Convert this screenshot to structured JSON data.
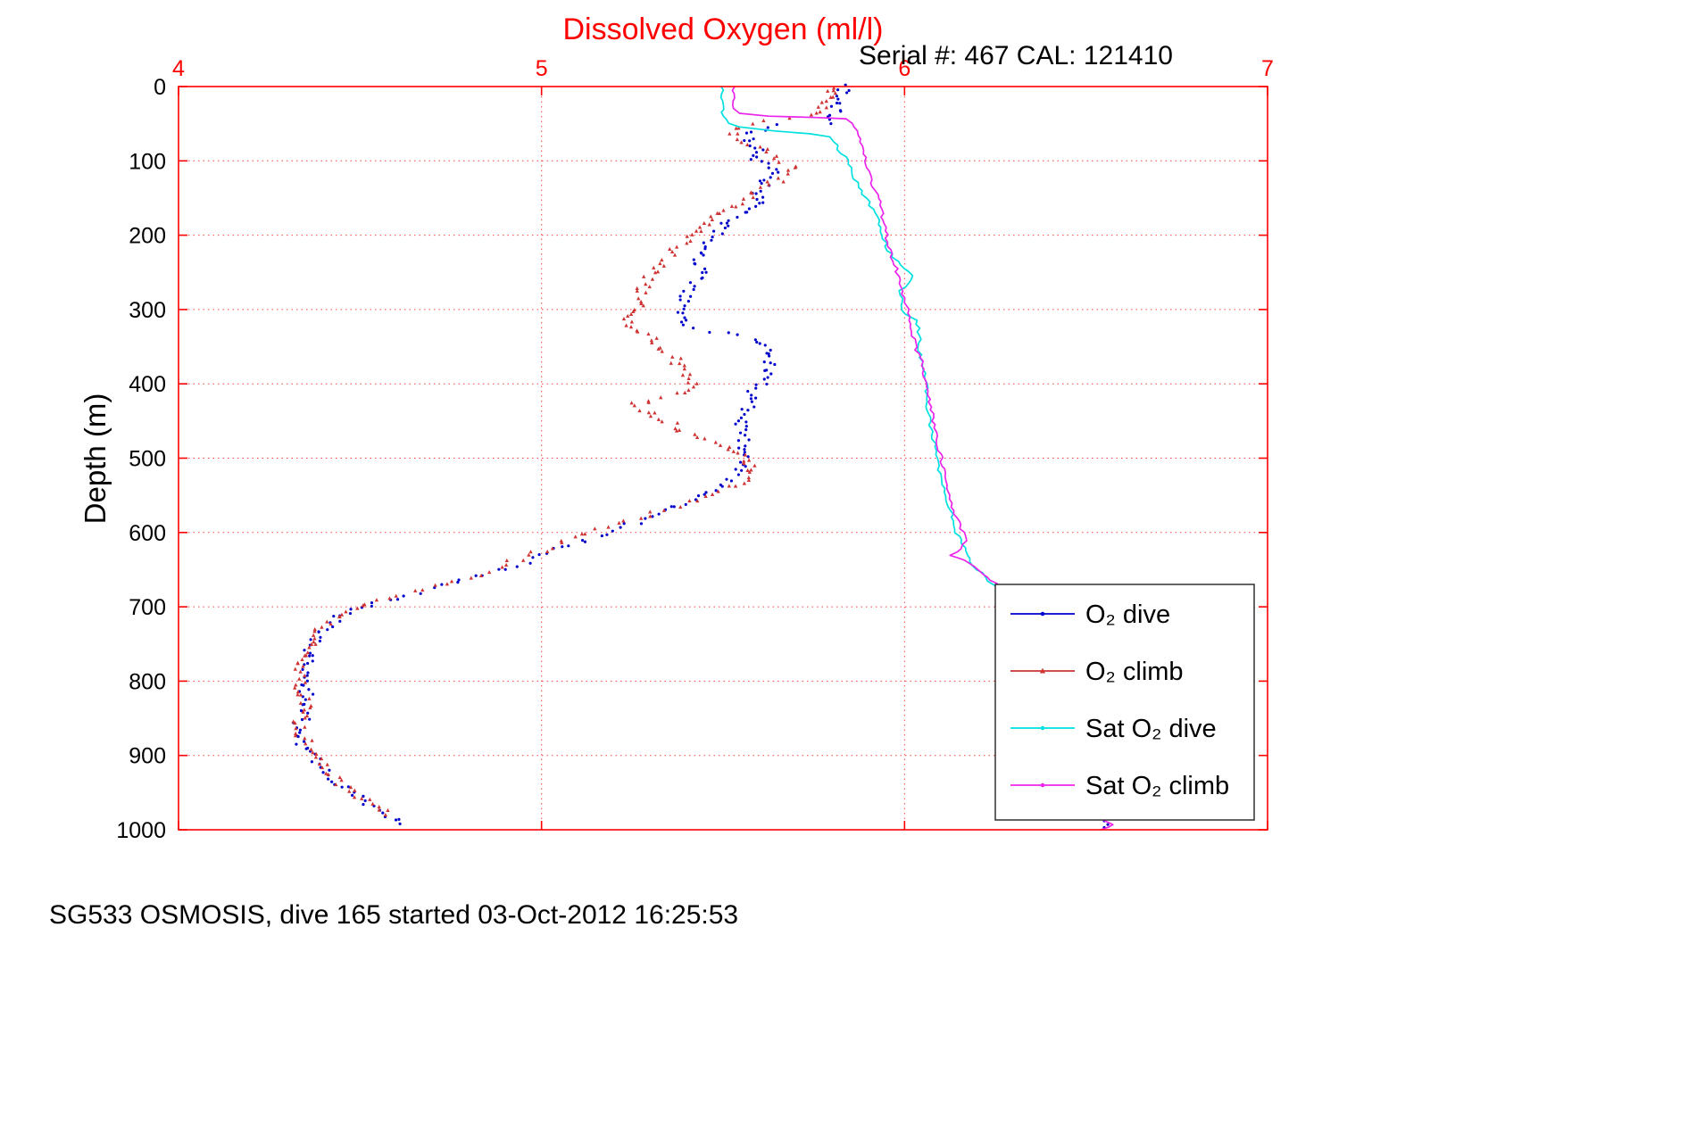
{
  "chart_data": {
    "type": "scatter",
    "title": "Dissolved Oxygen (ml/l)",
    "annotation": "Serial #: 467  CAL: 121410",
    "caption": "SG533 OSMOSIS, dive 165 started 03-Oct-2012 16:25:53",
    "xlabel": "Dissolved Oxygen (ml/l)",
    "ylabel": "Depth (m)",
    "x_axis_location": "top",
    "y_axis_reversed": true,
    "grid": true,
    "axis_color": "#ff0000",
    "xlim": [
      4,
      7
    ],
    "ylim": [
      0,
      1000
    ],
    "x_ticks": [
      4,
      5,
      6,
      7
    ],
    "y_ticks": [
      0,
      100,
      200,
      300,
      400,
      500,
      600,
      700,
      800,
      900,
      1000
    ],
    "legend": {
      "position": "inside-bottom-right",
      "border_color": "#222222",
      "background": "#ffffff"
    },
    "series": [
      {
        "name": "o2-dive",
        "label": "O₂ dive",
        "kind": "scatter",
        "marker": "dot",
        "color": "#0000cd",
        "profile": [
          [
            0,
            5.83
          ],
          [
            10,
            5.83
          ],
          [
            20,
            5.82
          ],
          [
            30,
            5.81
          ],
          [
            40,
            5.8
          ],
          [
            48,
            5.78
          ],
          [
            52,
            5.66
          ],
          [
            58,
            5.6
          ],
          [
            65,
            5.56
          ],
          [
            75,
            5.58
          ],
          [
            85,
            5.61
          ],
          [
            95,
            5.58
          ],
          [
            105,
            5.61
          ],
          [
            115,
            5.64
          ],
          [
            125,
            5.6
          ],
          [
            135,
            5.62
          ],
          [
            145,
            5.59
          ],
          [
            155,
            5.6
          ],
          [
            165,
            5.56
          ],
          [
            175,
            5.54
          ],
          [
            185,
            5.51
          ],
          [
            195,
            5.49
          ],
          [
            210,
            5.46
          ],
          [
            225,
            5.44
          ],
          [
            240,
            5.43
          ],
          [
            252,
            5.46
          ],
          [
            265,
            5.42
          ],
          [
            280,
            5.4
          ],
          [
            295,
            5.39
          ],
          [
            310,
            5.38
          ],
          [
            322,
            5.4
          ],
          [
            332,
            5.5
          ],
          [
            340,
            5.58
          ],
          [
            350,
            5.61
          ],
          [
            365,
            5.63
          ],
          [
            380,
            5.63
          ],
          [
            395,
            5.61
          ],
          [
            410,
            5.58
          ],
          [
            425,
            5.57
          ],
          [
            440,
            5.56
          ],
          [
            455,
            5.55
          ],
          [
            470,
            5.56
          ],
          [
            485,
            5.55
          ],
          [
            500,
            5.56
          ],
          [
            515,
            5.55
          ],
          [
            530,
            5.52
          ],
          [
            545,
            5.47
          ],
          [
            560,
            5.4
          ],
          [
            575,
            5.32
          ],
          [
            590,
            5.24
          ],
          [
            605,
            5.15
          ],
          [
            620,
            5.06
          ],
          [
            635,
            4.99
          ],
          [
            648,
            4.91
          ],
          [
            660,
            4.82
          ],
          [
            672,
            4.73
          ],
          [
            684,
            4.63
          ],
          [
            695,
            4.54
          ],
          [
            705,
            4.48
          ],
          [
            715,
            4.44
          ],
          [
            725,
            4.41
          ],
          [
            740,
            4.38
          ],
          [
            760,
            4.36
          ],
          [
            780,
            4.35
          ],
          [
            800,
            4.34
          ],
          [
            815,
            4.35
          ],
          [
            830,
            4.36
          ],
          [
            845,
            4.35
          ],
          [
            858,
            4.33
          ],
          [
            872,
            4.33
          ],
          [
            885,
            4.34
          ],
          [
            900,
            4.37
          ],
          [
            915,
            4.4
          ],
          [
            930,
            4.43
          ],
          [
            945,
            4.46
          ],
          [
            960,
            4.51
          ],
          [
            972,
            4.55
          ],
          [
            985,
            4.59
          ],
          [
            992,
            4.61
          ]
        ],
        "extra_points": [
          [
            983,
            6.54
          ],
          [
            988,
            6.55
          ],
          [
            993,
            6.56
          ],
          [
            997,
            6.55
          ]
        ]
      },
      {
        "name": "o2-climb",
        "label": "O₂ climb",
        "kind": "scatter",
        "marker": "triangle",
        "color": "#cf3333",
        "profile": [
          [
            0,
            5.81
          ],
          [
            10,
            5.8
          ],
          [
            20,
            5.79
          ],
          [
            30,
            5.78
          ],
          [
            40,
            5.76
          ],
          [
            48,
            5.62
          ],
          [
            55,
            5.55
          ],
          [
            62,
            5.53
          ],
          [
            70,
            5.55
          ],
          [
            78,
            5.58
          ],
          [
            86,
            5.61
          ],
          [
            94,
            5.64
          ],
          [
            102,
            5.67
          ],
          [
            110,
            5.7
          ],
          [
            118,
            5.68
          ],
          [
            126,
            5.65
          ],
          [
            134,
            5.62
          ],
          [
            142,
            5.59
          ],
          [
            150,
            5.57
          ],
          [
            160,
            5.53
          ],
          [
            170,
            5.5
          ],
          [
            180,
            5.47
          ],
          [
            190,
            5.45
          ],
          [
            200,
            5.42
          ],
          [
            212,
            5.39
          ],
          [
            224,
            5.36
          ],
          [
            236,
            5.33
          ],
          [
            248,
            5.31
          ],
          [
            260,
            5.29
          ],
          [
            272,
            5.28
          ],
          [
            284,
            5.27
          ],
          [
            296,
            5.27
          ],
          [
            308,
            5.25
          ],
          [
            318,
            5.24
          ],
          [
            328,
            5.27
          ],
          [
            338,
            5.3
          ],
          [
            350,
            5.33
          ],
          [
            362,
            5.36
          ],
          [
            374,
            5.38
          ],
          [
            386,
            5.4
          ],
          [
            398,
            5.42
          ],
          [
            408,
            5.41
          ],
          [
            418,
            5.33
          ],
          [
            428,
            5.26
          ],
          [
            438,
            5.28
          ],
          [
            448,
            5.33
          ],
          [
            458,
            5.37
          ],
          [
            468,
            5.41
          ],
          [
            478,
            5.47
          ],
          [
            488,
            5.52
          ],
          [
            498,
            5.55
          ],
          [
            508,
            5.57
          ],
          [
            518,
            5.58
          ],
          [
            528,
            5.56
          ],
          [
            540,
            5.51
          ],
          [
            552,
            5.44
          ],
          [
            564,
            5.37
          ],
          [
            576,
            5.29
          ],
          [
            588,
            5.22
          ],
          [
            600,
            5.13
          ],
          [
            612,
            5.06
          ],
          [
            624,
            5.0
          ],
          [
            636,
            4.94
          ],
          [
            648,
            4.88
          ],
          [
            660,
            4.79
          ],
          [
            672,
            4.7
          ],
          [
            684,
            4.61
          ],
          [
            695,
            4.53
          ],
          [
            705,
            4.47
          ],
          [
            715,
            4.43
          ],
          [
            727,
            4.4
          ],
          [
            742,
            4.37
          ],
          [
            760,
            4.35
          ],
          [
            778,
            4.34
          ],
          [
            796,
            4.33
          ],
          [
            812,
            4.34
          ],
          [
            828,
            4.35
          ],
          [
            844,
            4.34
          ],
          [
            858,
            4.33
          ],
          [
            874,
            4.34
          ],
          [
            890,
            4.36
          ],
          [
            906,
            4.38
          ],
          [
            922,
            4.42
          ],
          [
            938,
            4.45
          ],
          [
            954,
            4.49
          ],
          [
            968,
            4.54
          ],
          [
            980,
            4.57
          ]
        ],
        "extra_points": []
      },
      {
        "name": "sat-o2-dive",
        "label": "Sat O₂ dive",
        "kind": "line",
        "marker": "dot",
        "color": "#00e0e0",
        "segments": [
          [
            [
              0,
              5.5
            ],
            [
              20,
              5.5
            ],
            [
              40,
              5.5
            ],
            [
              50,
              5.51
            ],
            [
              55,
              5.54
            ],
            [
              60,
              5.64
            ],
            [
              64,
              5.74
            ],
            [
              68,
              5.79
            ],
            [
              75,
              5.81
            ],
            [
              85,
              5.82
            ],
            [
              95,
              5.84
            ],
            [
              110,
              5.85
            ],
            [
              125,
              5.86
            ],
            [
              140,
              5.88
            ],
            [
              155,
              5.9
            ],
            [
              170,
              5.92
            ],
            [
              185,
              5.93
            ],
            [
              200,
              5.94
            ],
            [
              215,
              5.95
            ],
            [
              230,
              5.97
            ],
            [
              245,
              6.0
            ],
            [
              255,
              6.02
            ],
            [
              265,
              6.01
            ],
            [
              275,
              5.99
            ],
            [
              290,
              5.99
            ],
            [
              305,
              6.0
            ],
            [
              315,
              6.03
            ],
            [
              330,
              6.04
            ],
            [
              350,
              6.04
            ],
            [
              375,
              6.05
            ],
            [
              400,
              6.06
            ],
            [
              425,
              6.06
            ],
            [
              450,
              6.07
            ],
            [
              475,
              6.08
            ],
            [
              500,
              6.09
            ],
            [
              525,
              6.1
            ],
            [
              550,
              6.11
            ],
            [
              575,
              6.13
            ],
            [
              600,
              6.14
            ],
            [
              615,
              6.16
            ],
            [
              630,
              6.17
            ],
            [
              645,
              6.19
            ],
            [
              655,
              6.21
            ],
            [
              665,
              6.23
            ],
            [
              672,
              6.25
            ],
            [
              678,
              6.26
            ]
          ]
        ]
      },
      {
        "name": "sat-o2-climb",
        "label": "Sat O₂ climb",
        "kind": "line",
        "marker": "dot",
        "color": "#eb24eb",
        "segments": [
          [
            [
              0,
              5.53
            ],
            [
              15,
              5.53
            ],
            [
              30,
              5.53
            ],
            [
              36,
              5.54
            ],
            [
              40,
              5.62
            ],
            [
              42,
              5.75
            ],
            [
              44,
              5.84
            ],
            [
              50,
              5.86
            ],
            [
              60,
              5.87
            ],
            [
              75,
              5.88
            ],
            [
              90,
              5.89
            ],
            [
              110,
              5.9
            ],
            [
              130,
              5.91
            ],
            [
              150,
              5.93
            ],
            [
              175,
              5.94
            ],
            [
              200,
              5.95
            ],
            [
              225,
              5.96
            ],
            [
              250,
              5.98
            ],
            [
              275,
              5.99
            ],
            [
              300,
              6.01
            ],
            [
              325,
              6.02
            ],
            [
              350,
              6.03
            ],
            [
              375,
              6.05
            ],
            [
              400,
              6.06
            ],
            [
              425,
              6.07
            ],
            [
              450,
              6.08
            ],
            [
              475,
              6.09
            ],
            [
              500,
              6.1
            ],
            [
              525,
              6.11
            ],
            [
              550,
              6.12
            ],
            [
              570,
              6.13
            ],
            [
              585,
              6.15
            ],
            [
              600,
              6.16
            ],
            [
              612,
              6.17
            ],
            [
              622,
              6.15
            ],
            [
              630,
              6.13
            ],
            [
              638,
              6.16
            ],
            [
              645,
              6.19
            ],
            [
              652,
              6.21
            ],
            [
              660,
              6.23
            ],
            [
              668,
              6.25
            ],
            [
              674,
              6.26
            ]
          ],
          [
            [
              982,
              6.53
            ],
            [
              987,
              6.55
            ],
            [
              992,
              6.57
            ],
            [
              997,
              6.56
            ],
            [
              1000,
              6.54
            ]
          ]
        ]
      }
    ]
  }
}
